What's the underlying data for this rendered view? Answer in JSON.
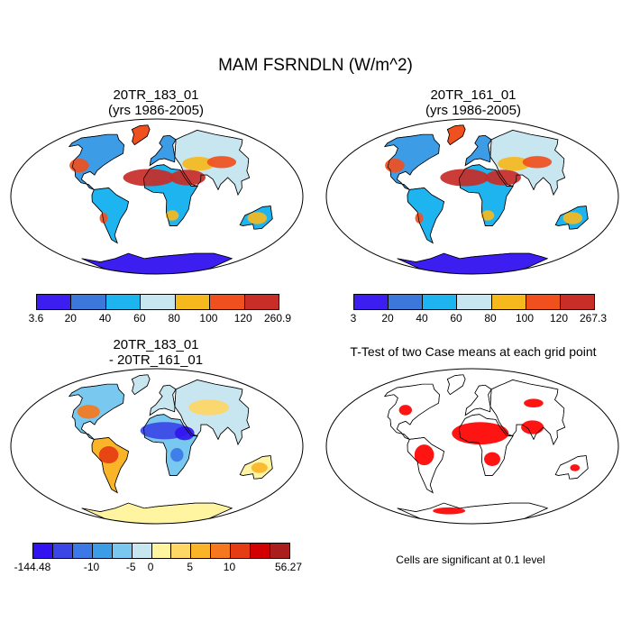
{
  "main_title": "MAM FSRNDLN (W/m^2)",
  "panels": [
    {
      "title_line1": "20TR_183_01",
      "title_line2": "(yrs 1986-2005)"
    },
    {
      "title_line1": "20TR_161_01",
      "title_line2": "(yrs 1986-2005)"
    },
    {
      "title_line1": "20TR_183_01",
      "title_line2": "- 20TR_161_01"
    },
    {
      "title_line1": "T-Test of two Case means at each grid point",
      "title_line2": ""
    }
  ],
  "colorbars": [
    {
      "colors": [
        "#3c1ef0",
        "#3c78dc",
        "#1eb4f0",
        "#c8e6f0",
        "#f5b91e",
        "#f0501e",
        "#c82d28"
      ],
      "labels": [
        "3.6",
        "20",
        "40",
        "60",
        "80",
        "100",
        "120",
        "260.9"
      ]
    },
    {
      "colors": [
        "#3c1ef0",
        "#3c78dc",
        "#1eb4f0",
        "#c8e6f0",
        "#f5b91e",
        "#f0501e",
        "#c82d28"
      ],
      "labels": [
        "3",
        "20",
        "40",
        "60",
        "80",
        "100",
        "120",
        "267.3"
      ]
    },
    {
      "colors": [
        "#3214f0",
        "#3c46e6",
        "#3c78e6",
        "#3c9ce6",
        "#78c8f0",
        "#c8e6f0",
        "#fff5a0",
        "#ffd764",
        "#fab428",
        "#f5781e",
        "#e63c14",
        "#d20000",
        "#aa1e1e"
      ],
      "labels": [
        "-144.48",
        "-10",
        "-5",
        "0",
        "5",
        "10",
        "56.27"
      ]
    }
  ],
  "significance_note": "Cells are significant at 0.1 level",
  "significance_color": "#ff0000"
}
